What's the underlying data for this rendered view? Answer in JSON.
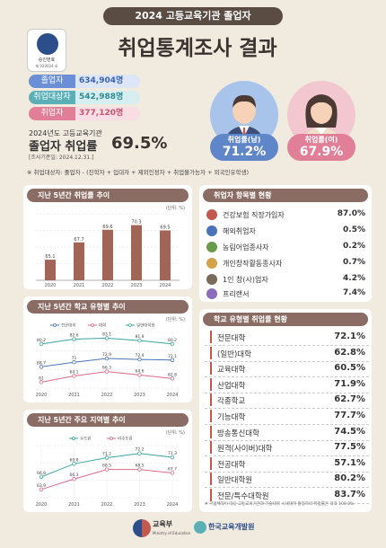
{
  "header": {
    "ribbon": "2024 고등교육기관 졸업자",
    "title": "취업통계조사 결과",
    "seal_line1": "승인번호",
    "seal_line2": "제 920024 호"
  },
  "stats": [
    {
      "label": "졸업자",
      "value": "634,904명",
      "color": "#6a8fd4"
    },
    {
      "label": "취업대상자",
      "value": "542,988명",
      "color": "#5bb0b8"
    },
    {
      "label": "취업자",
      "value": "377,120명",
      "color": "#e07f97"
    }
  ],
  "rate": {
    "small": "2024년도 고등교육기관",
    "label": "졸업자 취업률",
    "value": "69.5%",
    "date": "[조사기준일: 2024.12.31.]"
  },
  "gender": {
    "male_label": "취업률(남)",
    "male_value": "71.2%",
    "female_label": "취업률(여)",
    "female_value": "67.9%"
  },
  "note": "※ 취업대상자: 졸업자 - (진학자 + 입대자 + 제외인정자 + 취업불가능자 + 외국인유학생)",
  "panels": {
    "p1_title": "지난 5년간 취업률 추이",
    "p2_title": "지난 5년간 학교 유형별 추이",
    "p3_title": "지난 5년간 주요 지역별 추이",
    "p4_title": "취업자 항목별 현황",
    "p5_title": "학교 유형별 취업률 현황",
    "unit": "(단위: %)",
    "p5_note": "※ 기업체직이 대상 고등교육기관과 기술대학 시내대학 졸업자의 취업률은 각각 100.0%"
  },
  "chart_data": [
    {
      "type": "bar",
      "title": "지난 5년간 취업률 추이",
      "categories": [
        "2020",
        "2021",
        "2022",
        "2023",
        "2024"
      ],
      "values": [
        65.1,
        67.7,
        69.6,
        70.3,
        69.5
      ],
      "ylim": [
        62,
        72
      ],
      "unit": "(단위: %)",
      "color": "#a36458"
    },
    {
      "type": "line",
      "title": "지난 5년간 학교 유형별 추이",
      "categories": [
        "2020",
        "2021",
        "2022",
        "2023",
        "2024"
      ],
      "series": [
        {
          "name": "전문대학",
          "values": [
            68.7,
            71.0,
            72.9,
            72.4,
            72.1
          ],
          "color": "#4a74b9"
        },
        {
          "name": "대학",
          "values": [
            61.0,
            64.1,
            66.3,
            64.6,
            62.8
          ],
          "color": "#d96b88"
        },
        {
          "name": "일반대학원",
          "values": [
            80.2,
            82.6,
            83.1,
            81.9,
            80.2
          ],
          "color": "#3ba39b"
        }
      ],
      "ylim": [
        58,
        86
      ],
      "legend": "top",
      "unit": "(단위: %)"
    },
    {
      "type": "line",
      "title": "지난 5년간 주요 지역별 추이",
      "categories": [
        "2020",
        "2021",
        "2022",
        "2023",
        "2024"
      ],
      "series": [
        {
          "name": "수도권",
          "values": [
            66.8,
            69.8,
            71.2,
            72.2,
            71.3
          ],
          "color": "#3ba39b"
        },
        {
          "name": "비수도권",
          "values": [
            63.9,
            66.3,
            68.5,
            68.5,
            67.7
          ],
          "color": "#d96b88"
        }
      ],
      "ylim": [
        62,
        74
      ],
      "legend": "top",
      "unit": "(단위: %)"
    }
  ],
  "categories": [
    {
      "icon": "health-insurance-icon",
      "name": "건강보험 직장가입자",
      "value": "87.0%",
      "color": "#c3584f"
    },
    {
      "icon": "overseas-icon",
      "name": "해외취업자",
      "value": "0.5%",
      "color": "#4a74b9"
    },
    {
      "icon": "farmer-icon",
      "name": "농림어업종사자",
      "value": "0.2%",
      "color": "#6a9a4a"
    },
    {
      "icon": "creator-icon",
      "name": "개인창작활동종사자",
      "value": "0.7%",
      "color": "#d4a24a"
    },
    {
      "icon": "startup-icon",
      "name": "1인 창(사)업자",
      "value": "4.2%",
      "color": "#7a6a5a"
    },
    {
      "icon": "freelancer-icon",
      "name": "프리랜서",
      "value": "7.4%",
      "color": "#8a6cb8"
    }
  ],
  "school_types": [
    {
      "name": "전문대학",
      "value": "72.1%"
    },
    {
      "name": "(일반)대학",
      "value": "62.8%"
    },
    {
      "name": "교육대학",
      "value": "60.5%"
    },
    {
      "name": "산업대학",
      "value": "71.9%"
    },
    {
      "name": "각종학교",
      "value": "62.7%"
    },
    {
      "name": "기능대학",
      "value": "77.7%"
    },
    {
      "name": "방송통신대학",
      "value": "74.5%"
    },
    {
      "name": "원격(사이버)대학",
      "value": "77.5%"
    },
    {
      "name": "전공대학",
      "value": "57.1%"
    },
    {
      "name": "일반대학원",
      "value": "80.2%"
    },
    {
      "name": "전문/특수대학원",
      "value": "83.7%"
    }
  ],
  "footer": {
    "moe": "교육부",
    "moe_en": "Ministry of Education",
    "kedi": "한국교육개발원"
  }
}
